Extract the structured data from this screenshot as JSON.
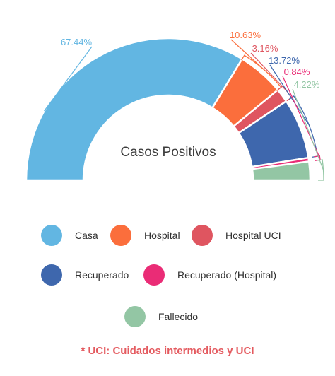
{
  "chart_data": {
    "type": "pie",
    "variant": "half-donut",
    "title": "Casos Positivos",
    "series": [
      {
        "name": "Casa",
        "value": 67.44,
        "label": "67.44%",
        "color": "#62b6e2"
      },
      {
        "name": "Hospital",
        "value": 10.63,
        "label": "10.63%",
        "color": "#fb6e3c"
      },
      {
        "name": "Hospital UCI",
        "value": 3.16,
        "label": "3.16%",
        "color": "#df5560"
      },
      {
        "name": "Recuperado",
        "value": 13.72,
        "label": "13.72%",
        "color": "#3e67ad"
      },
      {
        "name": "Recuperado (Hospital)",
        "value": 0.84,
        "label": "0.84%",
        "color": "#ea2c76"
      },
      {
        "name": "Fallecido",
        "value": 4.22,
        "label": "4.22%",
        "color": "#93c6a4"
      }
    ],
    "legend_position": "bottom"
  },
  "footnote": "* UCI: Cuidados intermedios y UCI"
}
